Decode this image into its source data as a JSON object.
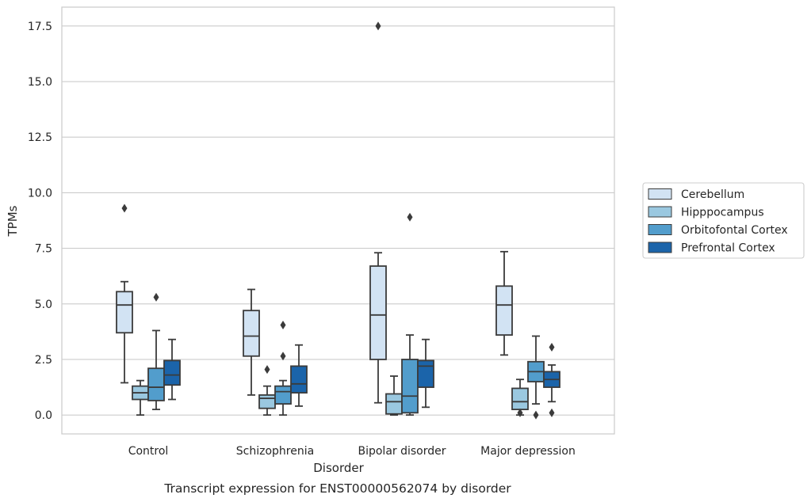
{
  "chart_data": {
    "type": "box",
    "title": "",
    "caption": "Transcript expression for ENST00000562074 by disorder",
    "xlabel": "Disorder",
    "ylabel": "TPMs",
    "ylim": [
      -0.85,
      18.35
    ],
    "yticks": [
      "0.0",
      "2.5",
      "5.0",
      "7.5",
      "10.0",
      "12.5",
      "15.0",
      "17.5"
    ],
    "grid": "horizontal",
    "legend_position": "right",
    "categories": [
      "Control",
      "Schizophrenia",
      "Bipolar disorder",
      "Major depression"
    ],
    "series": [
      {
        "name": "Cerebellum",
        "color": "#d2e3f3",
        "boxes": [
          {
            "whislo": 1.45,
            "q1": 3.7,
            "med": 4.95,
            "q3": 5.55,
            "whishi": 6.0,
            "fliers": [
              9.3
            ]
          },
          {
            "whislo": 0.9,
            "q1": 2.65,
            "med": 3.55,
            "q3": 4.7,
            "whishi": 5.65,
            "fliers": []
          },
          {
            "whislo": 0.55,
            "q1": 2.5,
            "med": 4.5,
            "q3": 6.7,
            "whishi": 7.3,
            "fliers": [
              17.5
            ]
          },
          {
            "whislo": 2.7,
            "q1": 3.6,
            "med": 4.95,
            "q3": 5.8,
            "whishi": 7.35,
            "fliers": []
          }
        ]
      },
      {
        "name": "Hipppocampus",
        "color": "#9ac8e0",
        "boxes": [
          {
            "whislo": 0.0,
            "q1": 0.7,
            "med": 1.0,
            "q3": 1.3,
            "whishi": 1.55,
            "fliers": []
          },
          {
            "whislo": 0.0,
            "q1": 0.3,
            "med": 0.75,
            "q3": 0.9,
            "whishi": 1.3,
            "fliers": [
              2.05
            ]
          },
          {
            "whislo": 0.0,
            "q1": 0.05,
            "med": 0.6,
            "q3": 0.95,
            "whishi": 1.75,
            "fliers": []
          },
          {
            "whislo": 0.0,
            "q1": 0.25,
            "med": 0.6,
            "q3": 1.2,
            "whishi": 1.6,
            "fliers": [
              0.1
            ]
          }
        ]
      },
      {
        "name": "Orbitofontal Cortex",
        "color": "#529dcc",
        "boxes": [
          {
            "whislo": 0.25,
            "q1": 0.65,
            "med": 1.25,
            "q3": 2.1,
            "whishi": 3.8,
            "fliers": [
              5.3
            ]
          },
          {
            "whislo": 0.0,
            "q1": 0.5,
            "med": 1.05,
            "q3": 1.3,
            "whishi": 1.55,
            "fliers": [
              2.65,
              4.05
            ]
          },
          {
            "whislo": 0.0,
            "q1": 0.1,
            "med": 0.85,
            "q3": 2.5,
            "whishi": 3.6,
            "fliers": [
              8.9
            ]
          },
          {
            "whislo": 0.5,
            "q1": 1.5,
            "med": 1.95,
            "q3": 2.4,
            "whishi": 3.55,
            "fliers": [
              0.0
            ]
          }
        ]
      },
      {
        "name": "Prefrontal Cortex",
        "color": "#1b64aa",
        "boxes": [
          {
            "whislo": 0.7,
            "q1": 1.35,
            "med": 1.8,
            "q3": 2.45,
            "whishi": 3.4,
            "fliers": []
          },
          {
            "whislo": 0.4,
            "q1": 1.0,
            "med": 1.4,
            "q3": 2.2,
            "whishi": 3.15,
            "fliers": []
          },
          {
            "whislo": 0.35,
            "q1": 1.25,
            "med": 2.2,
            "q3": 2.45,
            "whishi": 3.4,
            "fliers": []
          },
          {
            "whislo": 0.6,
            "q1": 1.25,
            "med": 1.6,
            "q3": 1.95,
            "whishi": 2.25,
            "fliers": [
              0.1,
              3.05
            ]
          }
        ]
      }
    ]
  },
  "style": {
    "line_color": "#3b3b3b",
    "grid_color": "#cccccc",
    "frame_color": "#cccccc"
  }
}
